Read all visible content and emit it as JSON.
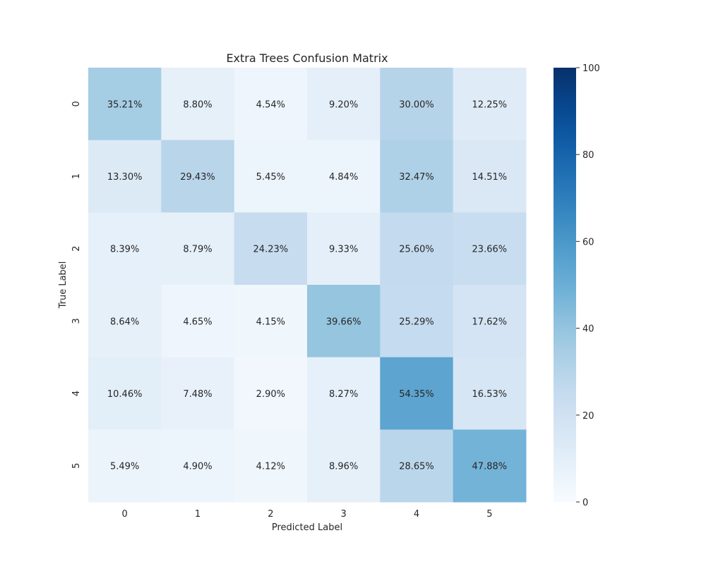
{
  "chart_data": {
    "type": "heatmap",
    "title": "Extra Trees Confusion Matrix",
    "xlabel": "Predicted Label",
    "ylabel": "True Label",
    "x_categories": [
      "0",
      "1",
      "2",
      "3",
      "4",
      "5"
    ],
    "y_categories": [
      "0",
      "1",
      "2",
      "3",
      "4",
      "5"
    ],
    "values": [
      [
        35.21,
        8.8,
        4.54,
        9.2,
        30.0,
        12.25
      ],
      [
        13.3,
        29.43,
        5.45,
        4.84,
        32.47,
        14.51
      ],
      [
        8.39,
        8.79,
        24.23,
        9.33,
        25.6,
        23.66
      ],
      [
        8.64,
        4.65,
        4.15,
        39.66,
        25.29,
        17.62
      ],
      [
        10.46,
        7.48,
        2.9,
        8.27,
        54.35,
        16.53
      ],
      [
        5.49,
        4.9,
        4.12,
        8.96,
        28.65,
        47.88
      ]
    ],
    "cell_labels": [
      [
        "35.21%",
        "8.80%",
        "4.54%",
        "9.20%",
        "30.00%",
        "12.25%"
      ],
      [
        "13.30%",
        "29.43%",
        "5.45%",
        "4.84%",
        "32.47%",
        "14.51%"
      ],
      [
        "8.39%",
        "8.79%",
        "24.23%",
        "9.33%",
        "25.60%",
        "23.66%"
      ],
      [
        "8.64%",
        "4.65%",
        "4.15%",
        "39.66%",
        "25.29%",
        "17.62%"
      ],
      [
        "10.46%",
        "7.48%",
        "2.90%",
        "8.27%",
        "54.35%",
        "16.53%"
      ],
      [
        "5.49%",
        "4.90%",
        "4.12%",
        "8.96%",
        "28.65%",
        "47.88%"
      ]
    ],
    "colorbar": {
      "range": [
        0,
        100
      ],
      "ticks": [
        "0",
        "20",
        "40",
        "60",
        "80",
        "100"
      ],
      "colormap": "Blues"
    },
    "grid": false
  }
}
